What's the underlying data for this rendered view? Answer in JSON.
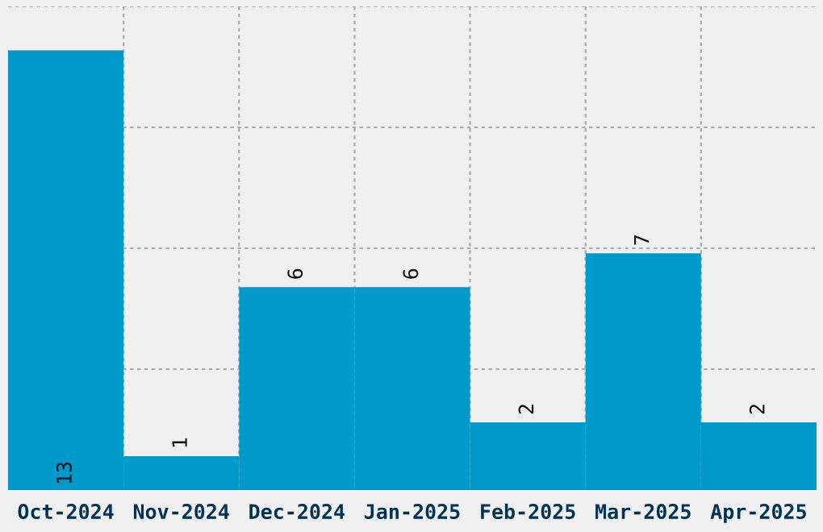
{
  "chart_data": {
    "type": "bar",
    "categories": [
      "Oct-2024",
      "Nov-2024",
      "Dec-2024",
      "Jan-2025",
      "Feb-2025",
      "Mar-2025",
      "Apr-2025"
    ],
    "values": [
      13,
      1,
      6,
      6,
      2,
      7,
      2
    ],
    "color": "#0099cc",
    "ylim": [
      0,
      14.3
    ],
    "tick_labels": "x",
    "grid": true,
    "data_labels": true
  }
}
